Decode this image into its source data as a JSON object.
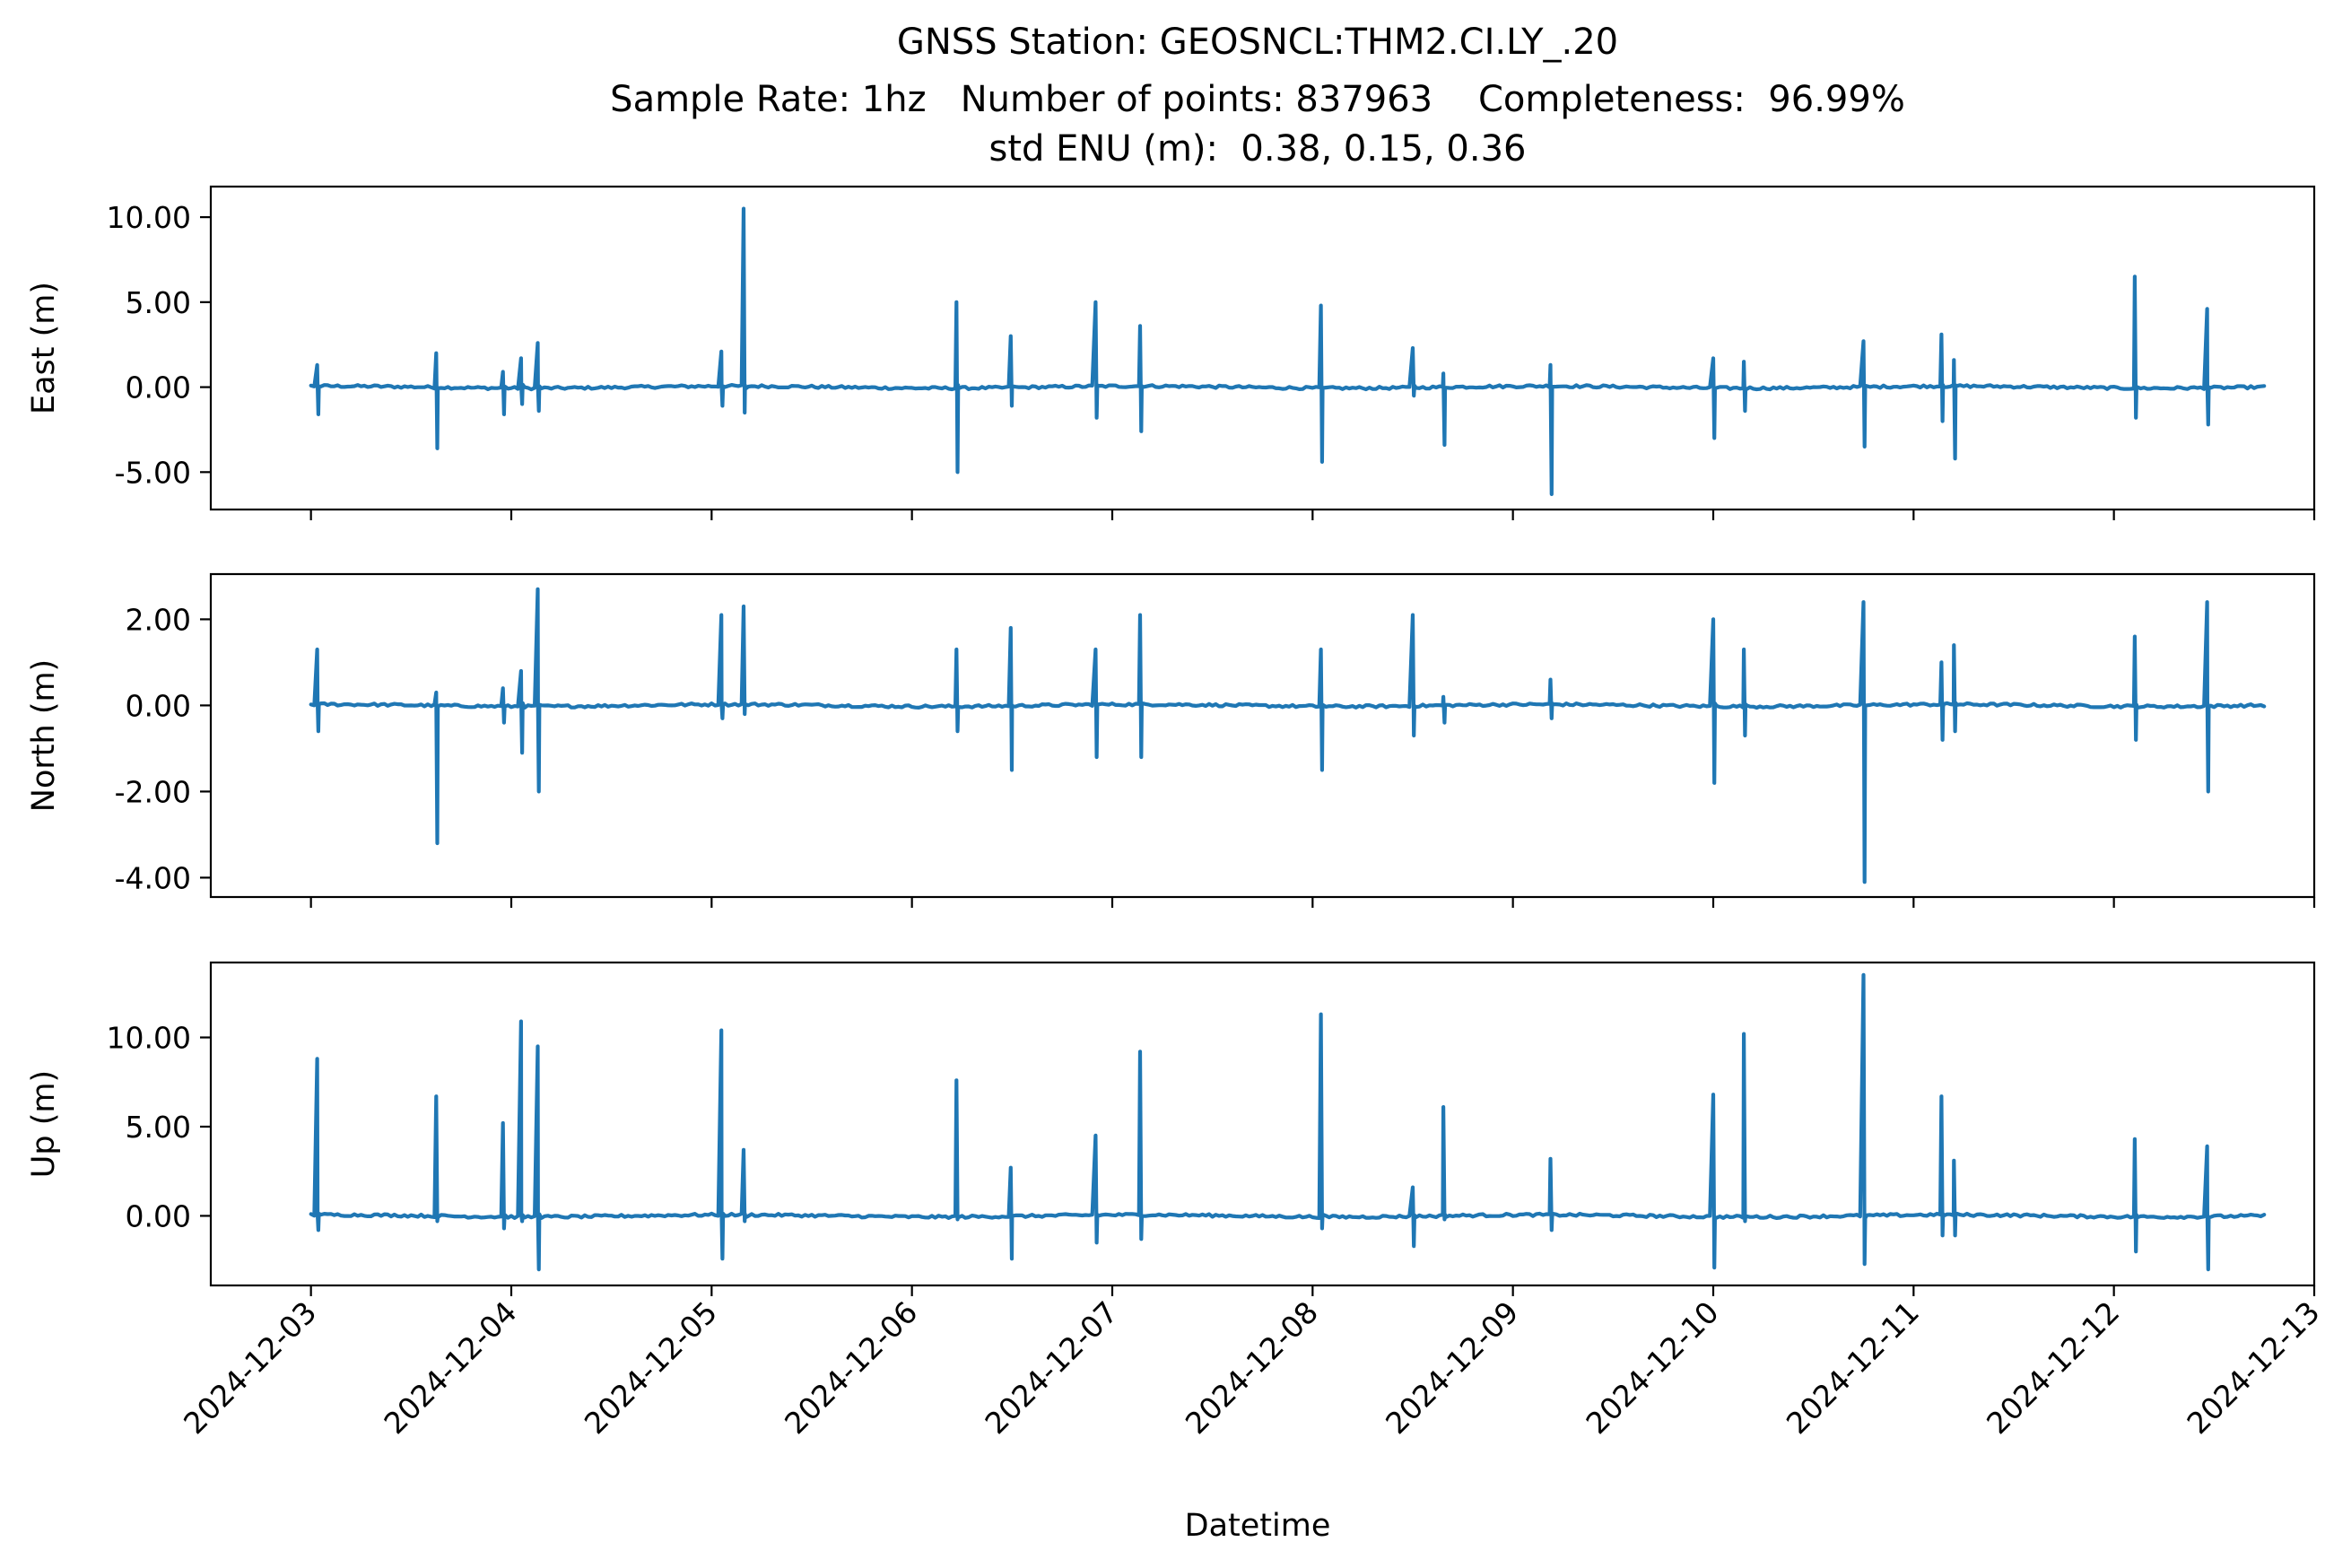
{
  "chart_data": {
    "type": "line",
    "title": "GNSS Station: GEOSNCL:THM2.CI.LY_.20",
    "subtitle_lines": [
      "Sample Rate: 1hz   Number of points: 837963    Completeness:  96.99%",
      "std ENU (m):  0.38, 0.15, 0.36"
    ],
    "xlabel": "Datetime",
    "x_ticks": [
      "2024-12-03",
      "2024-12-04",
      "2024-12-05",
      "2024-12-06",
      "2024-12-07",
      "2024-12-08",
      "2024-12-09",
      "2024-12-10",
      "2024-12-11",
      "2024-12-12",
      "2024-12-13"
    ],
    "xlim": [
      "2024-12-02T12:00",
      "2024-12-13T00:00"
    ],
    "data_range_days": [
      3.0,
      12.75
    ],
    "grid": false,
    "color": "#1f77b4",
    "panels": [
      {
        "name": "east",
        "ylabel": "East (m)",
        "ylim": [
          -7.2,
          11.8
        ],
        "y_ticks": [
          10,
          5,
          0,
          -5
        ],
        "y_tick_labels": [
          "10.00",
          "5.00",
          "0.00",
          "-5.00"
        ],
        "spikes": [
          {
            "t": "2024-12-03T00:45",
            "max": 1.3,
            "min": -1.6
          },
          {
            "t": "2024-12-03T15:00",
            "max": 2.0,
            "min": -3.6
          },
          {
            "t": "2024-12-03T23:00",
            "max": 0.9,
            "min": -1.6
          },
          {
            "t": "2024-12-04T01:10",
            "max": 1.7,
            "min": -1.0
          },
          {
            "t": "2024-12-04T03:10",
            "max": 2.6,
            "min": -1.4
          },
          {
            "t": "2024-12-05T01:10",
            "max": 2.1,
            "min": -1.1
          },
          {
            "t": "2024-12-05T03:50",
            "max": 10.5,
            "min": -1.5
          },
          {
            "t": "2024-12-06T05:20",
            "max": 5.0,
            "min": -5.0
          },
          {
            "t": "2024-12-06T11:50",
            "max": 3.0,
            "min": -1.1
          },
          {
            "t": "2024-12-06T22:00",
            "max": 5.0,
            "min": -1.8
          },
          {
            "t": "2024-12-07T03:20",
            "max": 3.6,
            "min": -2.6
          },
          {
            "t": "2024-12-08T01:00",
            "max": 4.8,
            "min": -4.4
          },
          {
            "t": "2024-12-08T12:00",
            "max": 2.3,
            "min": -0.5
          },
          {
            "t": "2024-12-08T15:40",
            "max": 0.8,
            "min": -3.4
          },
          {
            "t": "2024-12-09T04:30",
            "max": 1.3,
            "min": -6.3
          },
          {
            "t": "2024-12-10T00:00",
            "max": 1.7,
            "min": -3.0
          },
          {
            "t": "2024-12-10T03:40",
            "max": 1.5,
            "min": -1.4
          },
          {
            "t": "2024-12-10T18:00",
            "max": 2.7,
            "min": -3.5
          },
          {
            "t": "2024-12-11T03:20",
            "max": 3.1,
            "min": -2.0
          },
          {
            "t": "2024-12-11T04:50",
            "max": 1.6,
            "min": -4.2
          },
          {
            "t": "2024-12-12T02:30",
            "max": 6.5,
            "min": -1.8
          },
          {
            "t": "2024-12-12T11:10",
            "max": 4.6,
            "min": -2.2
          }
        ]
      },
      {
        "name": "north",
        "ylabel": "North (m)",
        "ylim": [
          -4.45,
          3.05
        ],
        "y_ticks": [
          2,
          0,
          -2,
          -4
        ],
        "y_tick_labels": [
          "2.00",
          "0.00",
          "-2.00",
          "-4.00"
        ],
        "spikes": [
          {
            "t": "2024-12-03T00:45",
            "max": 1.3,
            "min": -0.6
          },
          {
            "t": "2024-12-03T15:00",
            "max": 0.3,
            "min": -3.2
          },
          {
            "t": "2024-12-03T23:00",
            "max": 0.4,
            "min": -0.4
          },
          {
            "t": "2024-12-04T01:10",
            "max": 0.8,
            "min": -1.1
          },
          {
            "t": "2024-12-04T03:10",
            "max": 2.7,
            "min": -2.0
          },
          {
            "t": "2024-12-05T01:10",
            "max": 2.1,
            "min": -0.3
          },
          {
            "t": "2024-12-05T03:50",
            "max": 2.3,
            "min": -0.2
          },
          {
            "t": "2024-12-06T05:20",
            "max": 1.3,
            "min": -0.6
          },
          {
            "t": "2024-12-06T11:50",
            "max": 1.8,
            "min": -1.5
          },
          {
            "t": "2024-12-06T22:00",
            "max": 1.3,
            "min": -1.2
          },
          {
            "t": "2024-12-07T03:20",
            "max": 2.1,
            "min": -1.2
          },
          {
            "t": "2024-12-08T01:00",
            "max": 1.3,
            "min": -1.5
          },
          {
            "t": "2024-12-08T12:00",
            "max": 2.1,
            "min": -0.7
          },
          {
            "t": "2024-12-08T15:40",
            "max": 0.2,
            "min": -0.4
          },
          {
            "t": "2024-12-09T04:30",
            "max": 0.6,
            "min": -0.3
          },
          {
            "t": "2024-12-10T00:00",
            "max": 2.0,
            "min": -1.8
          },
          {
            "t": "2024-12-10T03:40",
            "max": 1.3,
            "min": -0.7
          },
          {
            "t": "2024-12-10T18:00",
            "max": 2.4,
            "min": -4.1
          },
          {
            "t": "2024-12-11T03:20",
            "max": 1.0,
            "min": -0.8
          },
          {
            "t": "2024-12-11T04:50",
            "max": 1.4,
            "min": -0.6
          },
          {
            "t": "2024-12-12T02:30",
            "max": 1.6,
            "min": -0.8
          },
          {
            "t": "2024-12-12T11:10",
            "max": 2.4,
            "min": -2.0
          }
        ]
      },
      {
        "name": "up",
        "ylabel": "Up (m)",
        "ylim": [
          -3.9,
          14.2
        ],
        "y_ticks": [
          10,
          5,
          0
        ],
        "y_tick_labels": [
          "10.00",
          "5.00",
          "0.00"
        ],
        "spikes": [
          {
            "t": "2024-12-03T00:45",
            "max": 8.8,
            "min": -0.8
          },
          {
            "t": "2024-12-03T15:00",
            "max": 6.7,
            "min": -0.3
          },
          {
            "t": "2024-12-03T23:00",
            "max": 5.2,
            "min": -0.7
          },
          {
            "t": "2024-12-04T01:10",
            "max": 10.9,
            "min": -0.3
          },
          {
            "t": "2024-12-04T03:10",
            "max": 9.5,
            "min": -3.0
          },
          {
            "t": "2024-12-05T01:10",
            "max": 10.4,
            "min": -2.4
          },
          {
            "t": "2024-12-05T03:50",
            "max": 3.7,
            "min": -0.3
          },
          {
            "t": "2024-12-06T05:20",
            "max": 7.6,
            "min": -0.2
          },
          {
            "t": "2024-12-06T11:50",
            "max": 2.7,
            "min": -2.4
          },
          {
            "t": "2024-12-06T22:00",
            "max": 4.5,
            "min": -1.5
          },
          {
            "t": "2024-12-07T03:20",
            "max": 9.2,
            "min": -1.3
          },
          {
            "t": "2024-12-08T01:00",
            "max": 11.3,
            "min": -0.7
          },
          {
            "t": "2024-12-08T12:00",
            "max": 1.6,
            "min": -1.7
          },
          {
            "t": "2024-12-08T15:40",
            "max": 6.1,
            "min": -0.2
          },
          {
            "t": "2024-12-09T04:30",
            "max": 3.2,
            "min": -0.8
          },
          {
            "t": "2024-12-10T00:00",
            "max": 6.8,
            "min": -2.9
          },
          {
            "t": "2024-12-10T03:40",
            "max": 10.2,
            "min": -0.3
          },
          {
            "t": "2024-12-10T18:00",
            "max": 13.5,
            "min": -2.7
          },
          {
            "t": "2024-12-11T03:20",
            "max": 6.7,
            "min": -1.1
          },
          {
            "t": "2024-12-11T04:50",
            "max": 3.1,
            "min": -1.1
          },
          {
            "t": "2024-12-12T02:30",
            "max": 4.3,
            "min": -2.0
          },
          {
            "t": "2024-12-12T11:10",
            "max": 3.9,
            "min": -3.0
          }
        ]
      }
    ]
  }
}
